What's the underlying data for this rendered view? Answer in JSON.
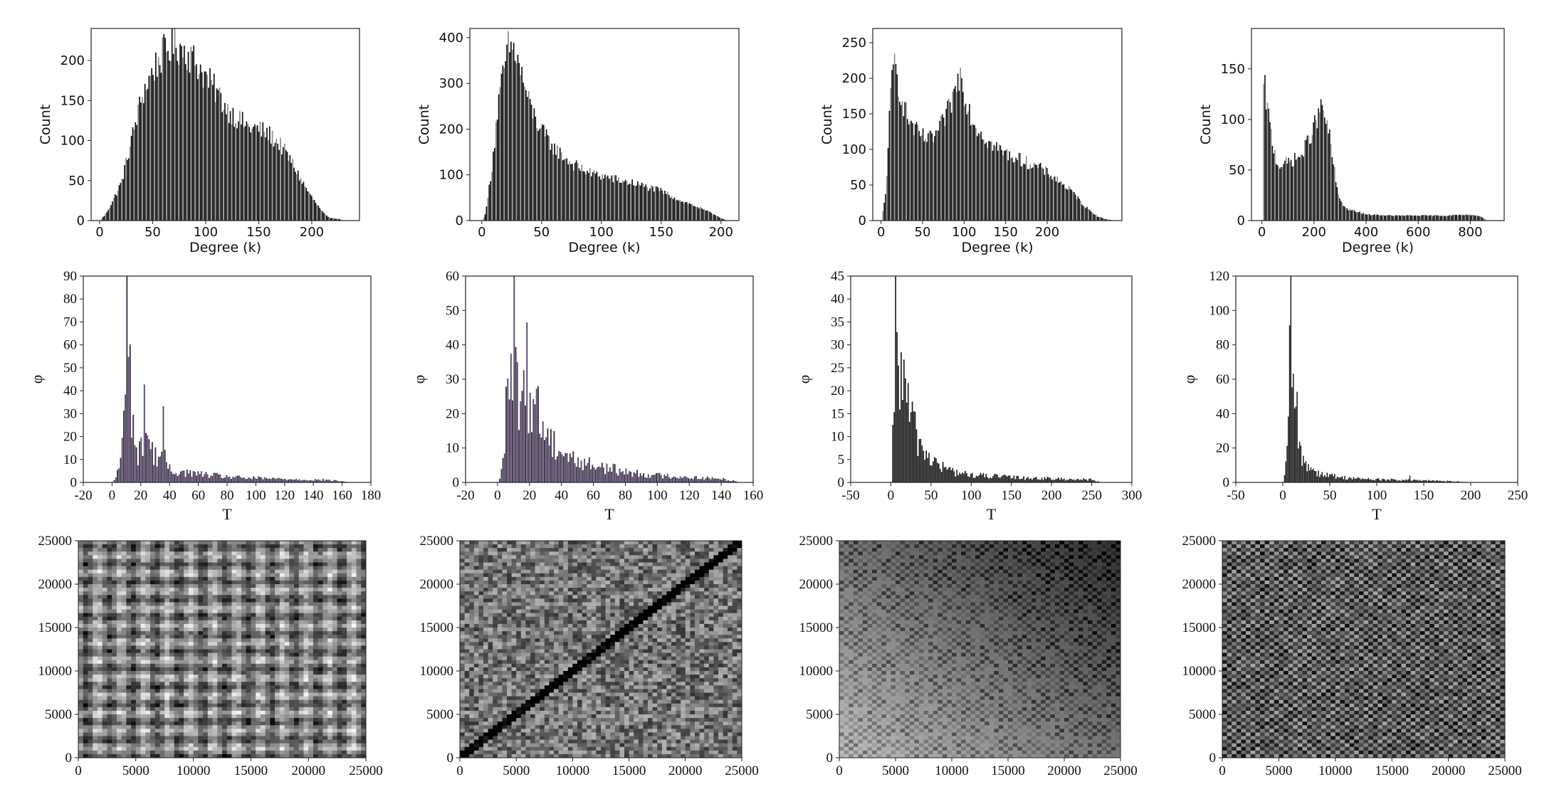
{
  "chart_data": [
    {
      "type": "bar",
      "row": 1,
      "col": 1,
      "xlabel": "Degree (k)",
      "ylabel": "Count",
      "xlim": [
        -8,
        245
      ],
      "ylim": [
        0,
        240
      ],
      "xticks": [
        0,
        50,
        100,
        150,
        200
      ],
      "yticks": [
        0,
        50,
        100,
        150,
        200
      ],
      "profile": [
        [
          0,
          0
        ],
        [
          5,
          8
        ],
        [
          10,
          20
        ],
        [
          20,
          48
        ],
        [
          30,
          105
        ],
        [
          40,
          160
        ],
        [
          50,
          190
        ],
        [
          60,
          212
        ],
        [
          70,
          222
        ],
        [
          80,
          215
        ],
        [
          90,
          200
        ],
        [
          100,
          180
        ],
        [
          110,
          162
        ],
        [
          120,
          140
        ],
        [
          130,
          128
        ],
        [
          140,
          118
        ],
        [
          150,
          115
        ],
        [
          160,
          108
        ],
        [
          170,
          95
        ],
        [
          180,
          75
        ],
        [
          190,
          50
        ],
        [
          200,
          28
        ],
        [
          210,
          10
        ],
        [
          215,
          4
        ],
        [
          225,
          2
        ],
        [
          230,
          0
        ]
      ]
    },
    {
      "type": "bar",
      "row": 1,
      "col": 2,
      "xlabel": "Degree (k)",
      "ylabel": "Count",
      "xlim": [
        -10,
        215
      ],
      "ylim": [
        0,
        420
      ],
      "xticks": [
        0,
        50,
        100,
        150,
        200
      ],
      "yticks": [
        0,
        100,
        200,
        300,
        400
      ],
      "profile": [
        [
          0,
          0
        ],
        [
          3,
          20
        ],
        [
          8,
          120
        ],
        [
          13,
          250
        ],
        [
          18,
          330
        ],
        [
          22,
          385
        ],
        [
          27,
          375
        ],
        [
          32,
          330
        ],
        [
          40,
          250
        ],
        [
          50,
          195
        ],
        [
          60,
          160
        ],
        [
          75,
          125
        ],
        [
          90,
          105
        ],
        [
          110,
          92
        ],
        [
          130,
          80
        ],
        [
          150,
          65
        ],
        [
          165,
          45
        ],
        [
          180,
          30
        ],
        [
          195,
          12
        ],
        [
          200,
          5
        ],
        [
          205,
          0
        ]
      ]
    },
    {
      "type": "bar",
      "row": 1,
      "col": 3,
      "xlabel": "Degree (k)",
      "ylabel": "Count",
      "xlim": [
        -10,
        290
      ],
      "ylim": [
        0,
        270
      ],
      "xticks": [
        0,
        50,
        100,
        150,
        200
      ],
      "yticks": [
        0,
        50,
        100,
        150,
        200,
        250
      ],
      "profile": [
        [
          0,
          0
        ],
        [
          5,
          40
        ],
        [
          10,
          160
        ],
        [
          15,
          230
        ],
        [
          20,
          195
        ],
        [
          30,
          150
        ],
        [
          40,
          128
        ],
        [
          50,
          118
        ],
        [
          60,
          115
        ],
        [
          70,
          130
        ],
        [
          80,
          155
        ],
        [
          90,
          190
        ],
        [
          95,
          210
        ],
        [
          100,
          180
        ],
        [
          110,
          140
        ],
        [
          130,
          110
        ],
        [
          150,
          95
        ],
        [
          170,
          85
        ],
        [
          190,
          75
        ],
        [
          210,
          60
        ],
        [
          230,
          40
        ],
        [
          245,
          20
        ],
        [
          260,
          6
        ],
        [
          270,
          2
        ],
        [
          280,
          0
        ]
      ]
    },
    {
      "type": "bar",
      "row": 1,
      "col": 4,
      "xlabel": "Degree (k)",
      "ylabel": "Count",
      "xlim": [
        -40,
        930
      ],
      "ylim": [
        0,
        190
      ],
      "xticks": [
        0,
        200,
        400,
        600,
        800
      ],
      "yticks": [
        0,
        50,
        100,
        150
      ],
      "profile": [
        [
          0,
          0
        ],
        [
          5,
          140
        ],
        [
          20,
          110
        ],
        [
          40,
          75
        ],
        [
          60,
          55
        ],
        [
          100,
          58
        ],
        [
          150,
          65
        ],
        [
          200,
          95
        ],
        [
          230,
          115
        ],
        [
          260,
          80
        ],
        [
          290,
          25
        ],
        [
          320,
          12
        ],
        [
          400,
          6
        ],
        [
          500,
          5
        ],
        [
          600,
          5
        ],
        [
          700,
          5
        ],
        [
          800,
          6
        ],
        [
          840,
          4
        ],
        [
          860,
          0
        ]
      ]
    },
    {
      "type": "bar",
      "row": 2,
      "col": 1,
      "xlabel": "T",
      "ylabel": "φ",
      "xlim": [
        -20,
        180
      ],
      "ylim": [
        0,
        90
      ],
      "xticks": [
        -20,
        0,
        20,
        40,
        60,
        80,
        100,
        120,
        140,
        160,
        180
      ],
      "yticks": [
        0,
        10,
        20,
        30,
        40,
        50,
        60,
        70,
        80,
        90
      ],
      "peaks": [
        [
          10,
          84
        ],
        [
          12,
          60
        ],
        [
          22,
          44
        ],
        [
          35,
          25
        ]
      ],
      "profile": [
        [
          0,
          0
        ],
        [
          2,
          2
        ],
        [
          5,
          8
        ],
        [
          8,
          30
        ],
        [
          11,
          45
        ],
        [
          15,
          20
        ],
        [
          18,
          10
        ],
        [
          22,
          25
        ],
        [
          28,
          12
        ],
        [
          35,
          12
        ],
        [
          40,
          5
        ],
        [
          55,
          4
        ],
        [
          70,
          3
        ],
        [
          90,
          2
        ],
        [
          120,
          1.5
        ],
        [
          150,
          1
        ],
        [
          160,
          0.5
        ],
        [
          165,
          0
        ]
      ]
    },
    {
      "type": "bar",
      "row": 2,
      "col": 2,
      "xlabel": "T",
      "ylabel": "φ",
      "xlim": [
        -20,
        160
      ],
      "ylim": [
        0,
        60
      ],
      "xticks": [
        -20,
        0,
        20,
        40,
        60,
        80,
        100,
        120,
        140,
        160
      ],
      "yticks": [
        0,
        10,
        20,
        30,
        40,
        50,
        60
      ],
      "peaks": [
        [
          10,
          54
        ],
        [
          18,
          41
        ],
        [
          25,
          23
        ],
        [
          6,
          37
        ]
      ],
      "profile": [
        [
          0,
          0
        ],
        [
          2,
          3
        ],
        [
          5,
          20
        ],
        [
          10,
          30
        ],
        [
          15,
          22
        ],
        [
          20,
          26
        ],
        [
          30,
          14
        ],
        [
          40,
          9
        ],
        [
          50,
          6
        ],
        [
          60,
          5
        ],
        [
          70,
          4
        ],
        [
          80,
          3
        ],
        [
          100,
          2
        ],
        [
          120,
          1.5
        ],
        [
          140,
          1
        ],
        [
          148,
          0.5
        ],
        [
          150,
          0
        ]
      ]
    },
    {
      "type": "bar",
      "row": 2,
      "col": 3,
      "xlabel": "T",
      "ylabel": "φ",
      "xlim": [
        -50,
        300
      ],
      "ylim": [
        0,
        45
      ],
      "xticks": [
        -50,
        0,
        50,
        100,
        150,
        200,
        250,
        300
      ],
      "yticks": [
        0,
        5,
        10,
        15,
        20,
        25,
        30,
        35,
        40,
        45
      ],
      "peaks": [
        [
          5,
          41
        ],
        [
          12,
          32
        ],
        [
          20,
          20
        ]
      ],
      "profile": [
        [
          0,
          0
        ],
        [
          2,
          10
        ],
        [
          5,
          30
        ],
        [
          10,
          25
        ],
        [
          15,
          20
        ],
        [
          25,
          13
        ],
        [
          40,
          7
        ],
        [
          60,
          3.5
        ],
        [
          80,
          2.2
        ],
        [
          100,
          1.6
        ],
        [
          150,
          1.1
        ],
        [
          200,
          0.8
        ],
        [
          250,
          0.6
        ],
        [
          255,
          0.3
        ],
        [
          260,
          0
        ]
      ]
    },
    {
      "type": "bar",
      "row": 2,
      "col": 4,
      "xlabel": "T",
      "ylabel": "φ",
      "xlim": [
        -50,
        250
      ],
      "ylim": [
        0,
        120
      ],
      "xticks": [
        -50,
        0,
        50,
        100,
        150,
        200,
        250
      ],
      "yticks": [
        0,
        20,
        40,
        60,
        80,
        100,
        120
      ],
      "peaks": [
        [
          8,
          118
        ],
        [
          5,
          45
        ],
        [
          15,
          42
        ],
        [
          135,
          5
        ]
      ],
      "profile": [
        [
          0,
          0
        ],
        [
          2,
          5
        ],
        [
          5,
          30
        ],
        [
          8,
          90
        ],
        [
          11,
          50
        ],
        [
          15,
          25
        ],
        [
          20,
          14
        ],
        [
          30,
          8
        ],
        [
          40,
          5
        ],
        [
          60,
          3
        ],
        [
          80,
          2.2
        ],
        [
          100,
          1.7
        ],
        [
          150,
          1.1
        ],
        [
          180,
          0.7
        ],
        [
          200,
          0
        ]
      ]
    },
    {
      "type": "heatmap",
      "row": 3,
      "col": 1,
      "xlim": [
        0,
        25000
      ],
      "ylim": [
        0,
        25000
      ],
      "xticks": [
        0,
        5000,
        10000,
        15000,
        20000,
        25000
      ],
      "yticks": [
        0,
        5000,
        10000,
        15000,
        20000,
        25000
      ]
    },
    {
      "type": "heatmap",
      "row": 3,
      "col": 2,
      "xlim": [
        0,
        25000
      ],
      "ylim": [
        0,
        25000
      ],
      "xticks": [
        0,
        5000,
        10000,
        15000,
        20000,
        25000
      ],
      "yticks": [
        0,
        5000,
        10000,
        15000,
        20000,
        25000
      ]
    },
    {
      "type": "heatmap",
      "row": 3,
      "col": 3,
      "xlim": [
        0,
        25000
      ],
      "ylim": [
        0,
        25000
      ],
      "xticks": [
        0,
        5000,
        10000,
        15000,
        20000,
        25000
      ],
      "yticks": [
        0,
        5000,
        10000,
        15000,
        20000,
        25000
      ]
    },
    {
      "type": "heatmap",
      "row": 3,
      "col": 4,
      "xlim": [
        0,
        25000
      ],
      "ylim": [
        0,
        25000
      ],
      "xticks": [
        0,
        5000,
        10000,
        15000,
        20000,
        25000
      ],
      "yticks": [
        0,
        5000,
        10000,
        15000,
        20000,
        25000
      ]
    }
  ]
}
